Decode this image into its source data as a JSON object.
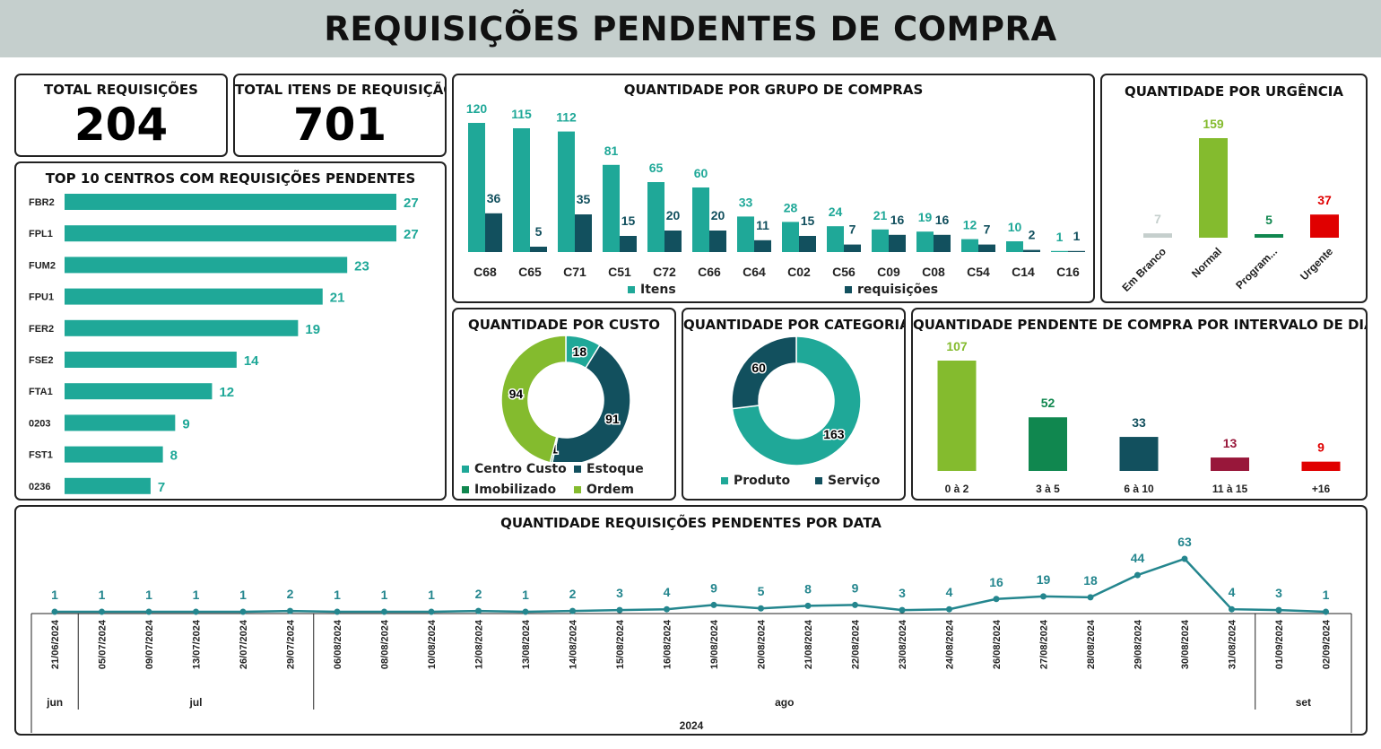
{
  "header": {
    "title": "REQUISIÇÕES PENDENTES DE COMPRA"
  },
  "kpis": {
    "total_requisicoes": {
      "label": "TOTAL REQUISIÇÕES",
      "value": "204"
    },
    "total_itens": {
      "label": "TOTAL ITENS DE REQUISIÇÃO",
      "value": "701"
    }
  },
  "colors": {
    "teal": "#1fa898",
    "dark_teal": "#12505e",
    "light_green": "#84bb2e",
    "green": "#10874f",
    "grey": "#c5cfcd",
    "red": "#e00000",
    "maroon": "#98173a",
    "line": "#24868e"
  },
  "chart_data": [
    {
      "id": "top10",
      "type": "bar",
      "orientation": "horizontal",
      "title": "TOP 10 CENTROS COM REQUISIÇÕES PENDENTES",
      "categories": [
        "FBR2",
        "FPL1",
        "FUM2",
        "FPU1",
        "FER2",
        "FSE2",
        "FTA1",
        "0203",
        "FST1",
        "0236"
      ],
      "values": [
        27,
        27,
        23,
        21,
        19,
        14,
        12,
        9,
        8,
        7
      ],
      "color": "#1fa898"
    },
    {
      "id": "grupo",
      "type": "bar",
      "title": "QUANTIDADE POR GRUPO DE COMPRAS",
      "categories": [
        "C68",
        "C65",
        "C71",
        "C51",
        "C72",
        "C66",
        "C64",
        "C02",
        "C56",
        "C09",
        "C08",
        "C54",
        "C14",
        "C16"
      ],
      "series": [
        {
          "name": "Itens",
          "color": "#1fa898",
          "values": [
            120,
            115,
            112,
            81,
            65,
            60,
            33,
            28,
            24,
            21,
            19,
            12,
            10,
            1
          ]
        },
        {
          "name": "requisições",
          "color": "#12505e",
          "values": [
            36,
            5,
            35,
            15,
            20,
            20,
            11,
            15,
            7,
            16,
            16,
            7,
            2,
            1
          ]
        }
      ],
      "legend": "bottom"
    },
    {
      "id": "urgencia",
      "type": "bar",
      "title": "QUANTIDADE POR URGÊNCIA",
      "categories": [
        "Em Branco",
        "Normal",
        "Program...",
        "Urgente"
      ],
      "values": [
        7,
        159,
        5,
        37
      ],
      "colors": [
        "#c5cfcd",
        "#84bb2e",
        "#10874f",
        "#e00000"
      ]
    },
    {
      "id": "custo",
      "type": "pie",
      "donut": true,
      "title": "QUANTIDADE POR CUSTO",
      "labels": [
        "Centro Custo",
        "Estoque",
        "Imobilizado",
        "Ordem"
      ],
      "values": [
        18,
        91,
        1,
        94
      ],
      "colors": [
        "#1fa898",
        "#12505e",
        "#10874f",
        "#84bb2e"
      ],
      "legend": "bottom"
    },
    {
      "id": "categoria",
      "type": "pie",
      "donut": true,
      "title": "QUANTIDADE POR CATEGORIA",
      "labels": [
        "Produto",
        "Serviço"
      ],
      "values": [
        163,
        60
      ],
      "colors": [
        "#1fa898",
        "#12505e"
      ],
      "legend": "bottom"
    },
    {
      "id": "intervalo",
      "type": "bar",
      "title": "QUANTIDADE PENDENTE DE COMPRA POR INTERVALO DE DIAS",
      "categories": [
        "0 à 2",
        "3 à 5",
        "6 à 10",
        "11 à 15",
        "+16"
      ],
      "values": [
        107,
        52,
        33,
        13,
        9
      ],
      "colors": [
        "#84bb2e",
        "#10874f",
        "#12505e",
        "#98173a",
        "#e00000"
      ]
    },
    {
      "id": "data",
      "type": "line",
      "title": "QUANTIDADE REQUISIÇÕES PENDENTES POR DATA",
      "x": [
        "21/06/2024",
        "05/07/2024",
        "09/07/2024",
        "13/07/2024",
        "26/07/2024",
        "29/07/2024",
        "06/08/2024",
        "08/08/2024",
        "10/08/2024",
        "12/08/2024",
        "13/08/2024",
        "14/08/2024",
        "15/08/2024",
        "16/08/2024",
        "19/08/2024",
        "20/08/2024",
        "21/08/2024",
        "22/08/2024",
        "23/08/2024",
        "24/08/2024",
        "26/08/2024",
        "27/08/2024",
        "28/08/2024",
        "29/08/2024",
        "30/08/2024",
        "31/08/2024",
        "01/09/2024",
        "02/09/2024"
      ],
      "values": [
        1,
        1,
        1,
        1,
        1,
        2,
        1,
        1,
        1,
        2,
        1,
        2,
        3,
        4,
        9,
        5,
        8,
        9,
        3,
        4,
        16,
        19,
        18,
        44,
        63,
        4,
        3,
        1
      ],
      "months": [
        {
          "label": "jun",
          "count": 1
        },
        {
          "label": "jul",
          "count": 5
        },
        {
          "label": "ago",
          "count": 20
        },
        {
          "label": "set",
          "count": 2
        }
      ],
      "year": "2024",
      "color": "#24868e"
    }
  ]
}
